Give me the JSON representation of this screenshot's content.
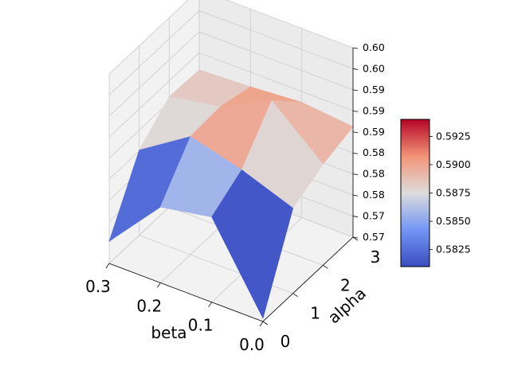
{
  "chart_data": {
    "type": "surface",
    "xlabel": "beta",
    "ylabel": "alpha",
    "x": [
      0.0,
      0.1,
      0.2,
      0.3
    ],
    "y": [
      0,
      1,
      2,
      3
    ],
    "z": [
      [
        0.571,
        0.584,
        0.5825,
        0.574
      ],
      [
        0.584,
        0.587,
        0.5892,
        0.584
      ],
      [
        0.5865,
        0.5935,
        0.5895,
        0.588
      ],
      [
        0.588,
        0.5888,
        0.5882,
        0.5878
      ]
    ],
    "xticks": [
      "0.0",
      "0.1",
      "0.2",
      "0.3"
    ],
    "yticks": [
      "0",
      "1",
      "2",
      "3"
    ],
    "zticks": [
      "0.57",
      "0.57",
      "0.58",
      "0.58",
      "0.58",
      "0.59",
      "0.59",
      "0.59",
      "0.60",
      "0.60"
    ],
    "zlim": [
      0.5705,
      0.6005
    ],
    "colormap": "coolwarm",
    "color_range": [
      0.581,
      0.594
    ],
    "colorbar_ticks": [
      "0.5825",
      "0.5850",
      "0.5875",
      "0.5900",
      "0.5925"
    ],
    "colorbar_values": [
      0.5825,
      0.585,
      0.5875,
      0.59,
      0.5925
    ]
  }
}
